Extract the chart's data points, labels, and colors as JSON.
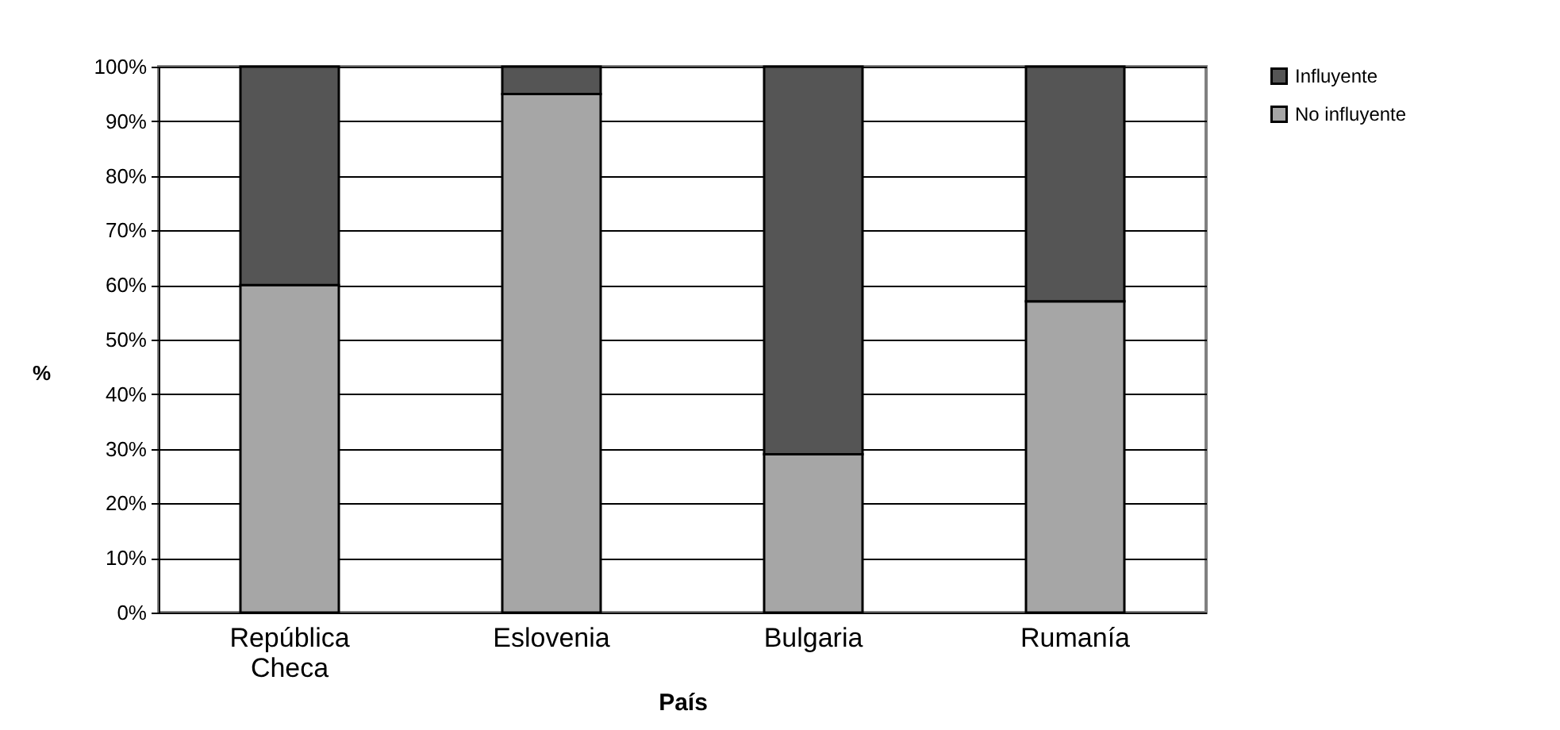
{
  "chart_data": {
    "type": "bar",
    "stacked": true,
    "xlabel": "País",
    "ylabel": "%",
    "categories": [
      "República Checa",
      "Eslovenia",
      "Bulgaria",
      "Rumanía"
    ],
    "series": [
      {
        "name": "No influyente",
        "color": "#a6a6a6",
        "values": [
          60,
          95,
          29,
          57
        ]
      },
      {
        "name": "Influyente",
        "color": "#555555",
        "values": [
          40,
          5,
          71,
          43
        ]
      }
    ],
    "ylim": [
      0,
      100
    ],
    "yticks": [
      {
        "value": 0,
        "label": "0%"
      },
      {
        "value": 10,
        "label": "10%"
      },
      {
        "value": 20,
        "label": "20%"
      },
      {
        "value": 30,
        "label": "30%"
      },
      {
        "value": 40,
        "label": "40%"
      },
      {
        "value": 50,
        "label": "50%"
      },
      {
        "value": 60,
        "label": "60%"
      },
      {
        "value": 70,
        "label": "70%"
      },
      {
        "value": 80,
        "label": "80%"
      },
      {
        "value": 90,
        "label": "90%"
      },
      {
        "value": 100,
        "label": "100%"
      }
    ],
    "grid": "y",
    "legend": "right"
  }
}
